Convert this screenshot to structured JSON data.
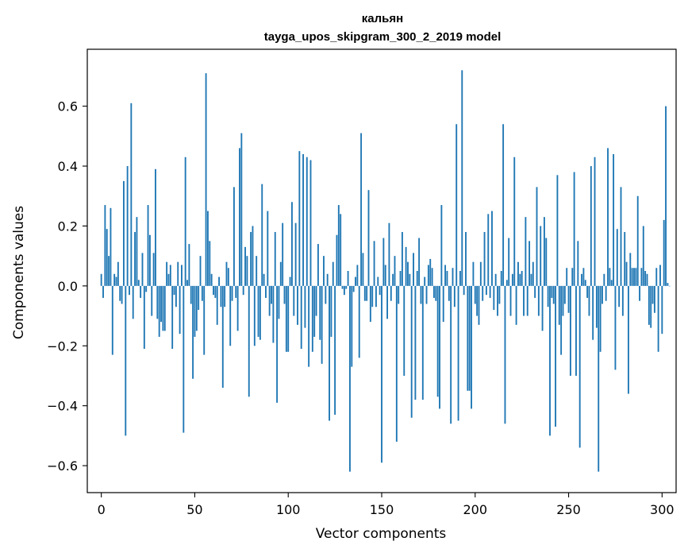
{
  "chart_data": {
    "type": "bar",
    "title": "кальян",
    "subtitle": "tayga_upos_skipgram_300_2_2019 model",
    "xlabel": "Vector components",
    "ylabel": "Components values",
    "xlim": [
      -7.5,
      307.5
    ],
    "ylim": [
      -0.69,
      0.79
    ],
    "xticks": [
      0,
      50,
      100,
      150,
      200,
      250,
      300
    ],
    "yticks": [
      -0.6,
      -0.4,
      -0.2,
      0.0,
      0.2,
      0.4,
      0.6
    ],
    "ytick_labels": [
      "−0.6",
      "−0.4",
      "−0.2",
      "0.0",
      "0.2",
      "0.4",
      "0.6"
    ],
    "grid": false,
    "bar_color": "#1f77b4",
    "values": [
      0.04,
      -0.04,
      0.27,
      0.19,
      0.1,
      0.26,
      -0.23,
      0.04,
      0.03,
      0.08,
      -0.05,
      -0.06,
      0.35,
      -0.5,
      0.4,
      -0.03,
      0.61,
      -0.11,
      0.18,
      0.23,
      0.02,
      -0.04,
      0.11,
      -0.21,
      -0.02,
      0.27,
      0.17,
      -0.1,
      0.11,
      0.39,
      -0.11,
      -0.17,
      -0.12,
      -0.15,
      -0.15,
      0.08,
      0.04,
      0.07,
      -0.21,
      -0.03,
      -0.07,
      0.08,
      -0.16,
      0.07,
      -0.49,
      0.43,
      0.02,
      0.14,
      -0.06,
      -0.31,
      -0.17,
      -0.15,
      -0.08,
      0.1,
      -0.05,
      -0.23,
      0.71,
      0.25,
      0.15,
      0.04,
      -0.03,
      -0.04,
      -0.13,
      0.03,
      -0.07,
      -0.34,
      -0.07,
      0.08,
      0.06,
      -0.2,
      -0.05,
      0.33,
      -0.04,
      -0.15,
      0.46,
      0.51,
      -0.03,
      0.13,
      0.1,
      -0.37,
      0.18,
      0.2,
      -0.2,
      0.1,
      -0.17,
      -0.18,
      0.34,
      0.04,
      -0.04,
      0.25,
      -0.1,
      -0.06,
      -0.19,
      0.18,
      -0.39,
      -0.11,
      0.08,
      0.21,
      -0.06,
      -0.22,
      -0.22,
      0.03,
      0.28,
      -0.1,
      0.21,
      -0.13,
      0.45,
      -0.21,
      0.44,
      -0.14,
      0.43,
      -0.27,
      0.42,
      -0.22,
      -0.17,
      -0.1,
      0.14,
      -0.18,
      -0.26,
      0.1,
      -0.06,
      0.04,
      -0.45,
      -0.17,
      0.08,
      -0.43,
      0.17,
      0.27,
      0.24,
      -0.01,
      -0.03,
      -0.01,
      0.05,
      -0.62,
      -0.27,
      -0.02,
      0.03,
      0.07,
      -0.24,
      0.51,
      0.11,
      -0.05,
      -0.05,
      0.32,
      -0.12,
      -0.07,
      0.15,
      -0.07,
      0.03,
      -0.03,
      -0.59,
      0.16,
      0.07,
      -0.11,
      0.21,
      -0.05,
      0.04,
      0.1,
      -0.52,
      -0.06,
      0.05,
      0.18,
      -0.3,
      0.13,
      0.08,
      0.04,
      -0.44,
      0.11,
      -0.38,
      0.05,
      0.16,
      -0.06,
      -0.38,
      0.03,
      -0.06,
      0.07,
      0.09,
      0.06,
      -0.04,
      -0.05,
      -0.37,
      -0.41,
      0.27,
      -0.12,
      0.07,
      0.05,
      -0.05,
      -0.46,
      0.06,
      -0.07,
      0.54,
      -0.45,
      0.05,
      0.72,
      -0.03,
      0.18,
      -0.35,
      -0.35,
      -0.41,
      0.08,
      -0.06,
      -0.1,
      -0.13,
      0.08,
      -0.05,
      0.18,
      -0.03,
      0.24,
      -0.04,
      0.25,
      -0.08,
      0.04,
      -0.1,
      -0.06,
      0.05,
      0.54,
      -0.46,
      0.02,
      0.16,
      -0.1,
      0.04,
      0.43,
      -0.13,
      0.08,
      0.04,
      0.05,
      -0.1,
      0.23,
      -0.1,
      0.15,
      0.04,
      0.08,
      -0.04,
      0.33,
      -0.1,
      0.2,
      -0.15,
      0.23,
      0.16,
      -0.07,
      -0.5,
      -0.04,
      -0.06,
      -0.47,
      0.37,
      -0.13,
      -0.23,
      -0.1,
      -0.06,
      0.06,
      -0.09,
      -0.3,
      0.06,
      0.38,
      -0.3,
      0.15,
      -0.54,
      0.04,
      0.06,
      0.02,
      -0.04,
      -0.1,
      0.4,
      -0.18,
      0.43,
      -0.14,
      -0.62,
      -0.22,
      -0.06,
      0.04,
      -0.05,
      0.46,
      0.06,
      0.02,
      0.44,
      -0.28,
      0.19,
      -0.07,
      0.33,
      -0.1,
      0.18,
      0.08,
      -0.36,
      0.11,
      0.06,
      0.06,
      0.06,
      0.3,
      -0.05,
      0.06,
      0.2,
      0.05,
      0.04,
      -0.13,
      -0.14,
      -0.06,
      -0.09,
      0.06,
      -0.22,
      0.07,
      -0.16,
      0.22,
      0.6,
      0.01,
      0.0
    ]
  }
}
